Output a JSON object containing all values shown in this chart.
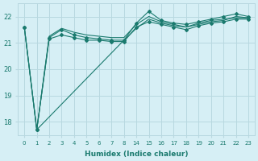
{
  "xlabel": "Humidex (Indice chaleur)",
  "background_color": "#d6eff5",
  "grid_color": "#b8d8e0",
  "line_color": "#1a7a6e",
  "ylim": [
    17.5,
    22.5
  ],
  "yticks": [
    18,
    19,
    20,
    21,
    22
  ],
  "x_values": [
    0,
    1,
    2,
    3,
    4,
    5,
    6,
    7,
    8,
    14,
    15,
    16,
    17,
    18,
    19,
    20,
    21,
    22,
    23
  ],
  "x_positions": [
    0,
    1,
    2,
    3,
    4,
    5,
    6,
    7,
    8,
    9,
    10,
    11,
    12,
    13,
    14,
    15,
    16,
    17,
    18
  ],
  "series": [
    {
      "x_idx": [
        0,
        1,
        2,
        3,
        4,
        5,
        6,
        7,
        8,
        9,
        10,
        11,
        12,
        13,
        14,
        15,
        16,
        17,
        18
      ],
      "y": [
        21.6,
        17.7,
        21.2,
        21.5,
        21.3,
        21.2,
        21.15,
        21.1,
        21.1,
        21.75,
        22.2,
        21.85,
        21.75,
        21.7,
        21.8,
        21.9,
        22.0,
        22.1,
        22.0
      ],
      "marker": "D",
      "markersize": 2.0
    },
    {
      "x_idx": [
        0,
        1,
        2,
        3,
        4,
        5,
        6,
        7,
        8,
        9,
        10,
        11,
        12,
        13,
        14,
        15,
        16,
        17,
        18
      ],
      "y": [
        21.6,
        17.7,
        21.25,
        21.55,
        21.4,
        21.3,
        21.25,
        21.2,
        21.2,
        21.7,
        22.0,
        21.8,
        21.7,
        21.6,
        21.75,
        21.85,
        21.9,
        21.95,
        21.95
      ],
      "marker": null,
      "markersize": 0
    },
    {
      "x_idx": [
        1,
        8,
        9,
        10,
        11,
        12,
        13,
        14,
        15,
        16,
        17,
        18
      ],
      "y": [
        17.7,
        21.1,
        21.55,
        21.9,
        21.75,
        21.65,
        21.6,
        21.7,
        21.8,
        21.85,
        22.0,
        21.95
      ],
      "marker": null,
      "markersize": 0
    },
    {
      "x_idx": [
        0,
        1,
        2,
        3,
        4,
        5,
        6,
        7,
        8,
        9,
        10,
        11,
        12,
        13,
        14,
        15,
        16,
        17,
        18
      ],
      "y": [
        21.6,
        17.7,
        21.15,
        21.3,
        21.2,
        21.1,
        21.1,
        21.05,
        21.05,
        21.6,
        21.8,
        21.7,
        21.6,
        21.5,
        21.65,
        21.75,
        21.8,
        21.9,
        21.9
      ],
      "marker": "D",
      "markersize": 2.0
    }
  ]
}
